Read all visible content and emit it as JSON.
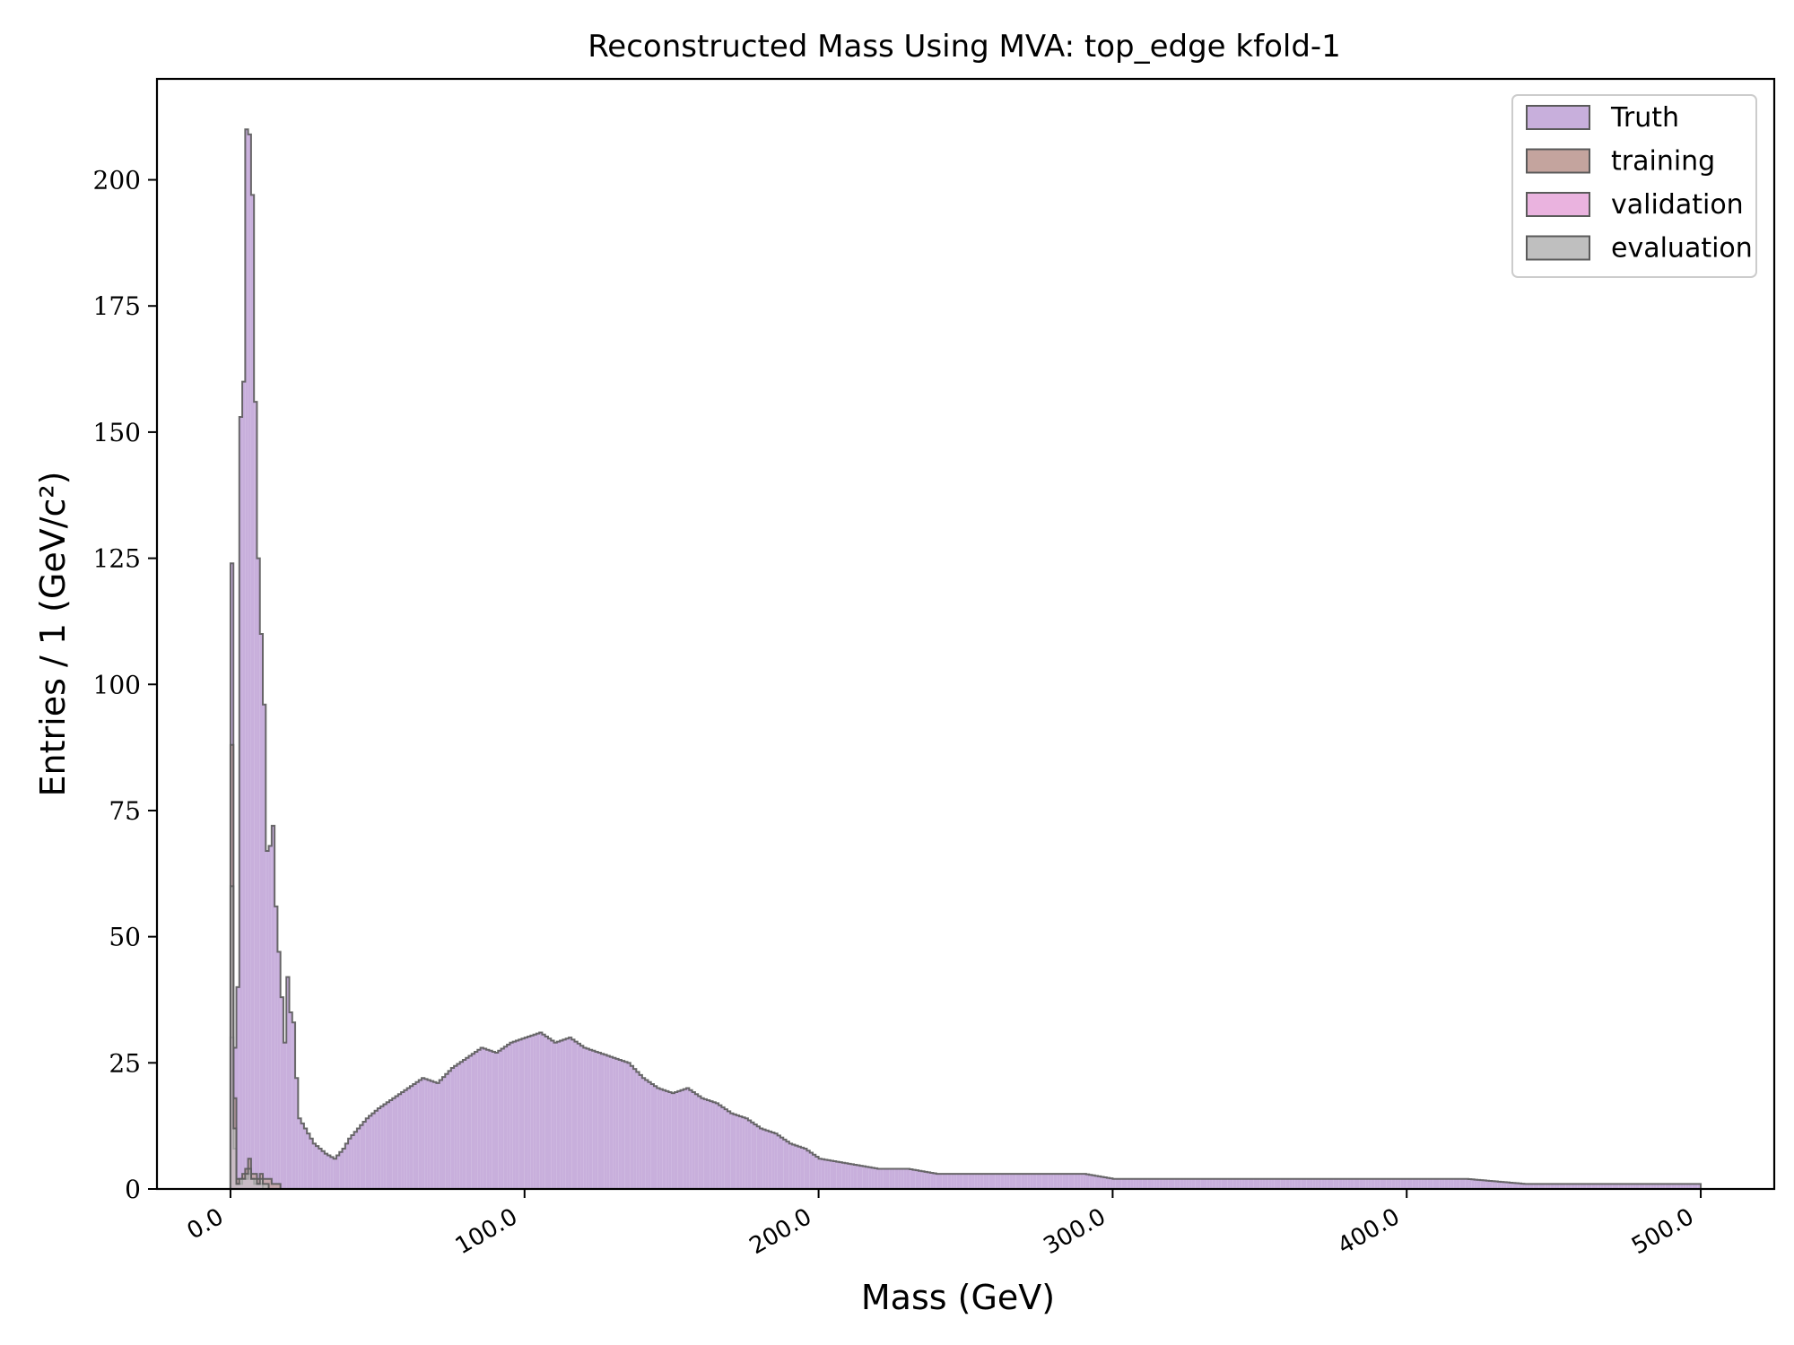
{
  "chart_data": {
    "type": "histogram",
    "title": "Reconstructed Mass Using MVA: top_edge kfold-1",
    "xlabel": "Mass (GeV)",
    "ylabel": "Entries / 1 (GeV/c²)",
    "xlim": [
      -25,
      525
    ],
    "ylim": [
      0,
      220
    ],
    "bin_width": 1,
    "x_ticks": [
      0,
      100,
      200,
      300,
      400,
      500
    ],
    "x_tick_labels": [
      "0.0",
      "100.0",
      "200.0",
      "300.0",
      "400.0",
      "500.0"
    ],
    "y_ticks": [
      0,
      25,
      50,
      75,
      100,
      125,
      150,
      175,
      200
    ],
    "y_tick_labels": [
      "0",
      "25",
      "50",
      "75",
      "100",
      "125",
      "150",
      "175",
      "200"
    ],
    "legend_position": "top-right",
    "grid": false,
    "series": [
      {
        "name": "Truth",
        "color": "#c8afdc",
        "edge_color": "#5a5a5a",
        "x": [
          0,
          1,
          2,
          3,
          4,
          5,
          6,
          7,
          8,
          9,
          10,
          11,
          12,
          13,
          14,
          15,
          16,
          17,
          18,
          19,
          20,
          21,
          22,
          23,
          24,
          25,
          26,
          27,
          28,
          30,
          32,
          35,
          38,
          40,
          43,
          46,
          50,
          55,
          60,
          65,
          70,
          75,
          80,
          85,
          90,
          95,
          100,
          105,
          110,
          115,
          120,
          125,
          130,
          135,
          140,
          145,
          150,
          155,
          160,
          165,
          170,
          175,
          180,
          185,
          190,
          195,
          200,
          210,
          220,
          230,
          240,
          250,
          260,
          270,
          280,
          290,
          300,
          320,
          340,
          360,
          380,
          400,
          420,
          440,
          460,
          480,
          499
        ],
        "values": [
          124,
          28,
          40,
          153,
          160,
          210,
          209,
          197,
          156,
          125,
          110,
          96,
          67,
          68,
          72,
          56,
          47,
          38,
          29,
          42,
          35,
          33,
          22,
          14,
          13,
          12,
          11,
          10,
          9,
          8,
          7,
          6,
          8,
          10,
          12,
          14,
          16,
          18,
          20,
          22,
          21,
          24,
          26,
          28,
          27,
          29,
          30,
          31,
          29,
          30,
          28,
          27,
          26,
          25,
          22,
          20,
          19,
          20,
          18,
          17,
          15,
          14,
          12,
          11,
          9,
          8,
          6,
          5,
          4,
          4,
          3,
          3,
          3,
          3,
          3,
          3,
          2,
          2,
          2,
          2,
          2,
          2,
          2,
          1,
          1,
          1,
          1
        ]
      },
      {
        "name": "training",
        "color": "#c4a49e",
        "edge_color": "#5a5a5a",
        "x": [
          0,
          1,
          2,
          3,
          4,
          5,
          6,
          7,
          8,
          9,
          10,
          11,
          12,
          13,
          14,
          15,
          16
        ],
        "values": [
          88,
          18,
          2,
          2,
          3,
          4,
          6,
          3,
          3,
          2,
          3,
          2,
          2,
          2,
          1,
          1,
          1
        ]
      },
      {
        "name": "validation",
        "color": "#eab3df",
        "edge_color": "#5a5a5a",
        "x": [
          0,
          1,
          2,
          3,
          4,
          5,
          6,
          7,
          8,
          9,
          10
        ],
        "values": [
          30,
          8,
          1,
          1,
          2,
          2,
          3,
          2,
          1,
          1,
          1
        ]
      },
      {
        "name": "evaluation",
        "color": "#bfbfbf",
        "edge_color": "#5a5a5a",
        "x": [
          0,
          1,
          2,
          3,
          4,
          5,
          6,
          7,
          8,
          9,
          10,
          11,
          12
        ],
        "values": [
          60,
          12,
          1,
          2,
          2,
          3,
          4,
          2,
          2,
          1,
          2,
          1,
          1
        ]
      }
    ]
  }
}
